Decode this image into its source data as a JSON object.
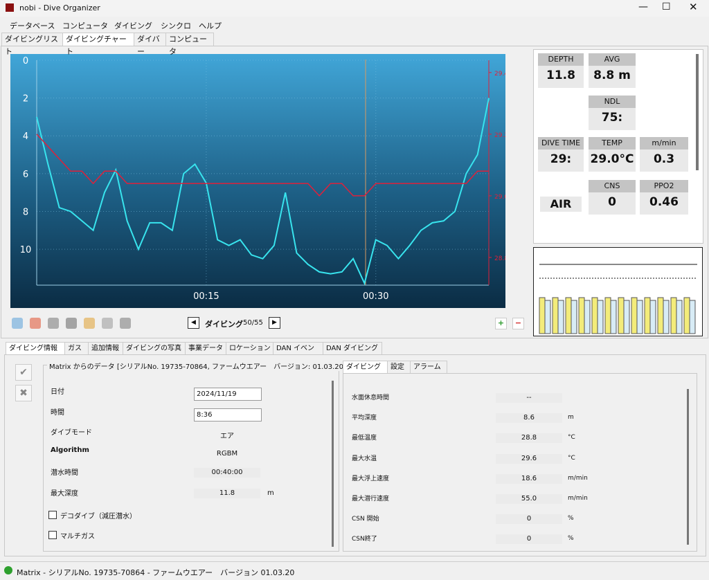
{
  "window": {
    "title": "nobi - Dive Organizer"
  },
  "menu": [
    "データベース",
    "コンピュータ",
    "ダイビング",
    "シンクロ",
    "ヘルプ"
  ],
  "tabs": [
    "ダイビングリスト",
    "ダイビングチャート",
    "ダイバー",
    "コンピュータ"
  ],
  "chart_data": {
    "type": "line",
    "x": [
      0,
      1,
      2,
      3,
      4,
      5,
      6,
      7,
      8,
      9,
      10,
      11,
      12,
      13,
      14,
      15,
      16,
      17,
      18,
      19,
      20,
      21,
      22,
      23,
      24,
      25,
      26,
      27,
      28,
      29,
      30,
      31,
      32,
      33,
      34,
      35,
      36,
      37,
      38,
      39,
      40
    ],
    "xlim": [
      0,
      40
    ],
    "xticks": [
      {
        "value": 15,
        "label": "00:15"
      },
      {
        "value": 30,
        "label": "00:30"
      }
    ],
    "ylim": [
      0,
      11.9
    ],
    "invert_y": true,
    "yticks": [
      0,
      2,
      4,
      6,
      8,
      10
    ],
    "y2lim": [
      28.71,
      29.44
    ],
    "y2ticks": [
      28.8,
      {
        "value": 29,
        "label": "29.0"
      },
      29.2,
      29.4
    ],
    "series": [
      {
        "color": "#38e4ee",
        "values": [
          3.0,
          5.5,
          7.8,
          8.0,
          8.5,
          9.0,
          7.0,
          5.8,
          8.5,
          10.0,
          8.6,
          8.6,
          9.0,
          6.0,
          5.5,
          6.5,
          9.5,
          9.8,
          9.5,
          10.3,
          10.5,
          9.8,
          7.0,
          10.2,
          10.8,
          11.2,
          11.3,
          11.2,
          10.5,
          11.8,
          9.5,
          9.8,
          10.5,
          9.8,
          9.0,
          8.6,
          8.5,
          8.0,
          6.0,
          5.0,
          2.0
        ]
      },
      {
        "color": "#e0203a",
        "axis": "y2",
        "values": [
          29.2,
          29.16,
          29.12,
          29.08,
          29.08,
          29.04,
          29.08,
          29.08,
          29.04,
          29.04,
          29.04,
          29.04,
          29.04,
          29.04,
          29.04,
          29.04,
          29.04,
          29.04,
          29.04,
          29.04,
          29.04,
          29.04,
          29.04,
          29.04,
          29.04,
          29.0,
          29.04,
          29.04,
          29.0,
          29.0,
          29.04,
          29.04,
          29.04,
          29.04,
          29.04,
          29.04,
          29.04,
          29.04,
          29.04,
          29.08,
          29.08
        ]
      }
    ]
  },
  "stats": [
    {
      "label": "DEPTH",
      "value": "11.8"
    },
    {
      "label": "AVG",
      "value": "8.8 m"
    },
    {
      "label": "NDL",
      "value": "75:"
    },
    {
      "label": "DIVE TIME",
      "value": "29:"
    },
    {
      "label": "TEMP",
      "value": "29.0°C"
    },
    {
      "label": "m/min",
      "value": "0.3"
    },
    {
      "label": "CNS",
      "value": "0"
    },
    {
      "label": "PPO2",
      "value": "0.46"
    }
  ],
  "gas": "AIR",
  "nav": {
    "label": "ダイビング",
    "counter": "50/55"
  },
  "info_tabs": [
    "ダイビング情報",
    "ガス",
    "追加情報",
    "ダイビングの写真",
    "事業データ",
    "ロケーション",
    "DAN イベント",
    "DAN ダイビング"
  ],
  "info": {
    "source": "Matrix からのデータ [シリアルNo. 19735-70864, ファームウエアー　バージョン: 01.03.20]",
    "fields": [
      {
        "label": "日付",
        "value": "2024/11/19"
      },
      {
        "label": "時間",
        "value": "8:36"
      },
      {
        "label": "ダイブモード",
        "value": "エア"
      },
      {
        "label": "Algorithm",
        "value": "RGBM"
      },
      {
        "label": "潜水時間",
        "value": "00:40:00"
      },
      {
        "label": "最大深度",
        "value": "11.8",
        "unit": "m"
      }
    ],
    "checks": [
      "デコダイブ（減圧潜水）",
      "マルチガス"
    ]
  },
  "detail_tabs": [
    "ダイビング",
    "設定",
    "アラーム"
  ],
  "details": [
    {
      "label": "水面休息時間",
      "value": "--"
    },
    {
      "label": "平均深度",
      "value": "8.6",
      "unit": "m"
    },
    {
      "label": "最低温度",
      "value": "28.8",
      "unit": "°C"
    },
    {
      "label": "最大水温",
      "value": "29.6",
      "unit": "°C"
    },
    {
      "label": "最大浮上速度",
      "value": "18.6",
      "unit": "m/min"
    },
    {
      "label": "最大潜行速度",
      "value": "55.0",
      "unit": "m/min"
    },
    {
      "label": "CSN 開始",
      "value": "0",
      "unit": "%"
    },
    {
      "label": "CSN終了",
      "value": "0",
      "unit": "%"
    }
  ],
  "status": "Matrix - シリアルNo. 19735-70864 - ファームウエアー　バージョン 01.03.20"
}
